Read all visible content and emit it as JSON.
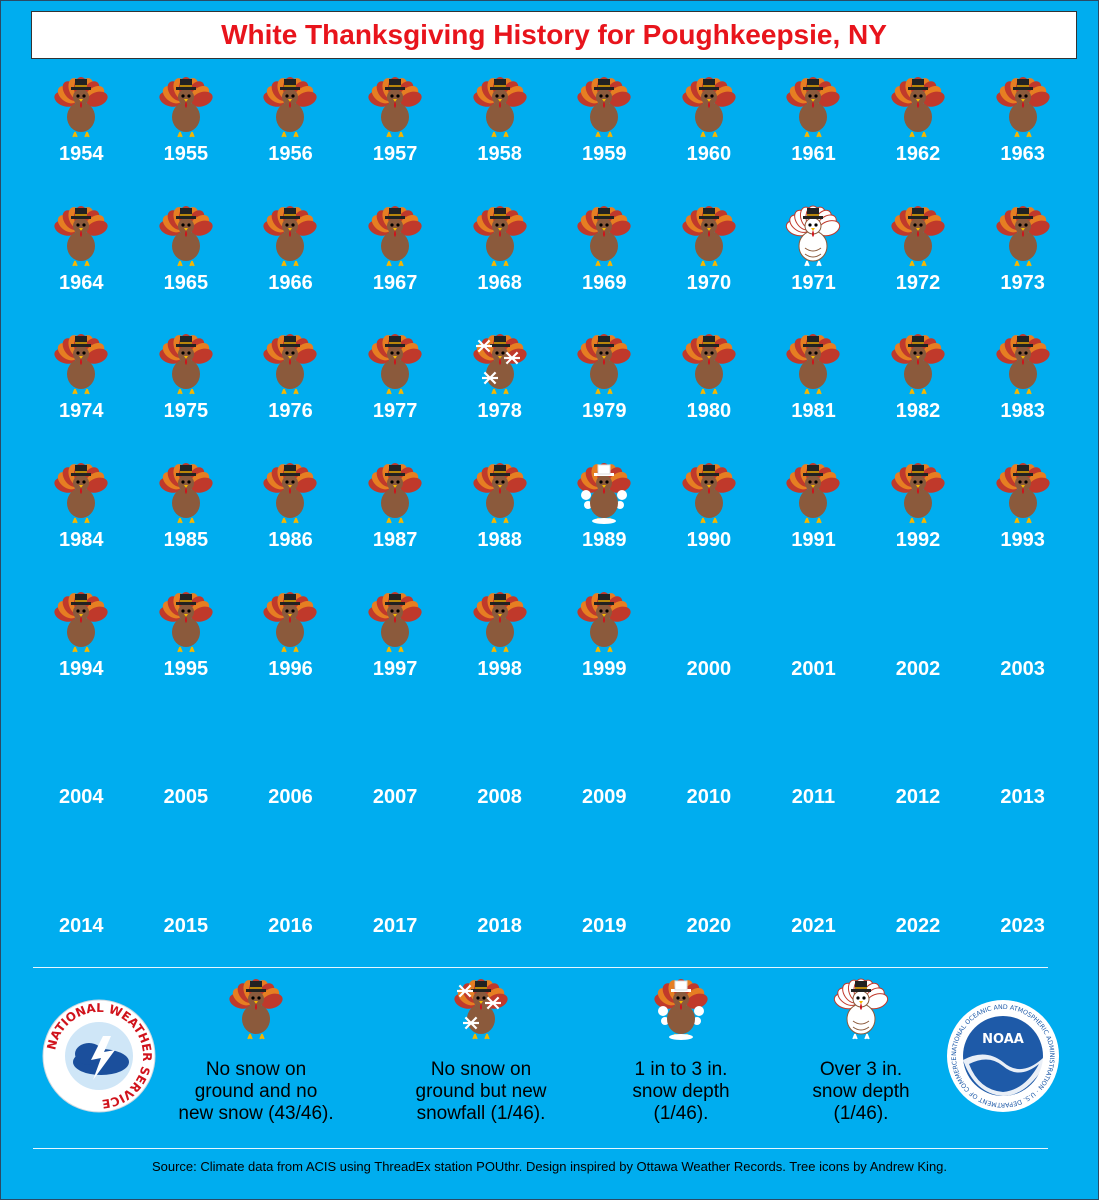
{
  "title": "White Thanksgiving History for Poughkeepsie, NY",
  "colors": {
    "background": "#00adef",
    "title_text": "#e8141c",
    "turkey_body": "#8b5a3c",
    "feather_red": "#c0392b",
    "feather_orange": "#e67e22",
    "hat": "#222222"
  },
  "years": [
    {
      "year": "1954",
      "icon": "turkey-no-snow-icon"
    },
    {
      "year": "1955",
      "icon": "turkey-no-snow-icon"
    },
    {
      "year": "1956",
      "icon": "turkey-no-snow-icon"
    },
    {
      "year": "1957",
      "icon": "turkey-no-snow-icon"
    },
    {
      "year": "1958",
      "icon": "turkey-no-snow-icon"
    },
    {
      "year": "1959",
      "icon": "turkey-no-snow-icon"
    },
    {
      "year": "1960",
      "icon": "turkey-no-snow-icon"
    },
    {
      "year": "1961",
      "icon": "turkey-no-snow-icon"
    },
    {
      "year": "1962",
      "icon": "turkey-no-snow-icon"
    },
    {
      "year": "1963",
      "icon": "turkey-no-snow-icon"
    },
    {
      "year": "1964",
      "icon": "turkey-no-snow-icon"
    },
    {
      "year": "1965",
      "icon": "turkey-no-snow-icon"
    },
    {
      "year": "1966",
      "icon": "turkey-no-snow-icon"
    },
    {
      "year": "1967",
      "icon": "turkey-no-snow-icon"
    },
    {
      "year": "1968",
      "icon": "turkey-no-snow-icon"
    },
    {
      "year": "1969",
      "icon": "turkey-no-snow-icon"
    },
    {
      "year": "1970",
      "icon": "turkey-no-snow-icon"
    },
    {
      "year": "1971",
      "icon": "turkey-over-3in-icon"
    },
    {
      "year": "1972",
      "icon": "turkey-no-snow-icon"
    },
    {
      "year": "1973",
      "icon": "turkey-no-snow-icon"
    },
    {
      "year": "1974",
      "icon": "turkey-no-snow-icon"
    },
    {
      "year": "1975",
      "icon": "turkey-no-snow-icon"
    },
    {
      "year": "1976",
      "icon": "turkey-no-snow-icon"
    },
    {
      "year": "1977",
      "icon": "turkey-no-snow-icon"
    },
    {
      "year": "1978",
      "icon": "turkey-new-snowfall-icon"
    },
    {
      "year": "1979",
      "icon": "turkey-no-snow-icon"
    },
    {
      "year": "1980",
      "icon": "turkey-no-snow-icon"
    },
    {
      "year": "1981",
      "icon": "turkey-no-snow-icon"
    },
    {
      "year": "1982",
      "icon": "turkey-no-snow-icon"
    },
    {
      "year": "1983",
      "icon": "turkey-no-snow-icon"
    },
    {
      "year": "1984",
      "icon": "turkey-no-snow-icon"
    },
    {
      "year": "1985",
      "icon": "turkey-no-snow-icon"
    },
    {
      "year": "1986",
      "icon": "turkey-no-snow-icon"
    },
    {
      "year": "1987",
      "icon": "turkey-no-snow-icon"
    },
    {
      "year": "1988",
      "icon": "turkey-no-snow-icon"
    },
    {
      "year": "1989",
      "icon": "turkey-1-3in-icon"
    },
    {
      "year": "1990",
      "icon": "turkey-no-snow-icon"
    },
    {
      "year": "1991",
      "icon": "turkey-no-snow-icon"
    },
    {
      "year": "1992",
      "icon": "turkey-no-snow-icon"
    },
    {
      "year": "1993",
      "icon": "turkey-no-snow-icon"
    },
    {
      "year": "1994",
      "icon": "turkey-no-snow-icon"
    },
    {
      "year": "1995",
      "icon": "turkey-no-snow-icon"
    },
    {
      "year": "1996",
      "icon": "turkey-no-snow-icon"
    },
    {
      "year": "1997",
      "icon": "turkey-no-snow-icon"
    },
    {
      "year": "1998",
      "icon": "turkey-no-snow-icon"
    },
    {
      "year": "1999",
      "icon": "turkey-no-snow-icon"
    },
    {
      "year": "2000",
      "icon": ""
    },
    {
      "year": "2001",
      "icon": ""
    },
    {
      "year": "2002",
      "icon": ""
    },
    {
      "year": "2003",
      "icon": ""
    },
    {
      "year": "2004",
      "icon": ""
    },
    {
      "year": "2005",
      "icon": ""
    },
    {
      "year": "2006",
      "icon": ""
    },
    {
      "year": "2007",
      "icon": ""
    },
    {
      "year": "2008",
      "icon": ""
    },
    {
      "year": "2009",
      "icon": ""
    },
    {
      "year": "2010",
      "icon": ""
    },
    {
      "year": "2011",
      "icon": ""
    },
    {
      "year": "2012",
      "icon": ""
    },
    {
      "year": "2013",
      "icon": ""
    },
    {
      "year": "2014",
      "icon": ""
    },
    {
      "year": "2015",
      "icon": ""
    },
    {
      "year": "2016",
      "icon": ""
    },
    {
      "year": "2017",
      "icon": ""
    },
    {
      "year": "2018",
      "icon": ""
    },
    {
      "year": "2019",
      "icon": ""
    },
    {
      "year": "2020",
      "icon": ""
    },
    {
      "year": "2021",
      "icon": ""
    },
    {
      "year": "2022",
      "icon": ""
    },
    {
      "year": "2023",
      "icon": ""
    }
  ],
  "legend": {
    "no_snow": {
      "icon": "turkey-no-snow-icon",
      "line1": "No snow on",
      "line2": "ground and no",
      "line3": "new snow (43/46)."
    },
    "new_snowfall": {
      "icon": "turkey-new-snowfall-icon",
      "line1": "No snow on",
      "line2": "ground but new",
      "line3": "snowfall (1/46)."
    },
    "depth_1_3": {
      "icon": "turkey-1-3in-icon",
      "line1": "1 in to 3 in.",
      "line2": "snow depth",
      "line3": "(1/46)."
    },
    "depth_over_3": {
      "icon": "turkey-over-3in-icon",
      "line1": "Over 3 in.",
      "line2": "snow depth",
      "line3": "(1/46)."
    }
  },
  "logos": {
    "nws": {
      "icon": "nws-logo-icon",
      "text": "NATIONAL WEATHER SERVICE"
    },
    "noaa": {
      "icon": "noaa-logo-icon",
      "text": "NOAA",
      "ring_text": "NATIONAL OCEANIC AND ATMOSPHERIC ADMINISTRATION · U.S. DEPARTMENT OF COMMERCE"
    }
  },
  "source": "Source: Climate data from ACIS using ThreadEx station POUthr. Design inspired by Ottawa Weather Records. Tree icons by Andrew King."
}
